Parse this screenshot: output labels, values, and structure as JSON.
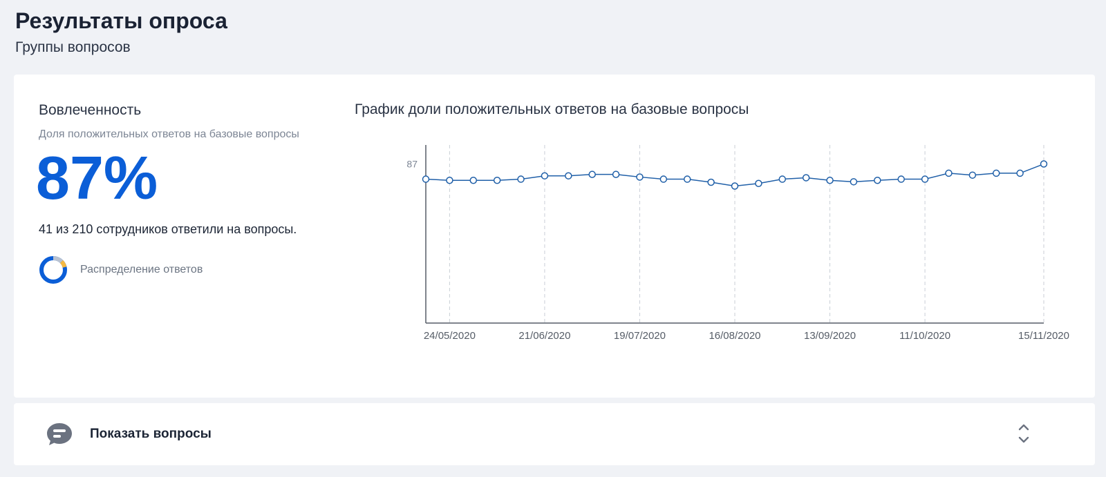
{
  "header": {
    "title": "Результаты опроса",
    "subtitle": "Группы вопросов"
  },
  "engagement": {
    "title": "Вовлеченность",
    "caption": "Доля положительных ответов на базовые вопросы",
    "value": "87%",
    "count_text": "41 из 210 сотрудников ответили на вопросы.",
    "distribution_label": "Распределение ответов",
    "donut_colors": [
      "#0b5ed7",
      "#f5b942",
      "#b9c2d0"
    ]
  },
  "chart": {
    "title": "График доли положительных ответов на базовые вопросы"
  },
  "chart_data": {
    "type": "line",
    "x": [
      "17/05/2020",
      "24/05/2020",
      "31/05/2020",
      "07/06/2020",
      "14/06/2020",
      "21/06/2020",
      "28/06/2020",
      "05/07/2020",
      "12/07/2020",
      "19/07/2020",
      "26/07/2020",
      "02/08/2020",
      "09/08/2020",
      "16/08/2020",
      "23/08/2020",
      "30/08/2020",
      "06/09/2020",
      "13/09/2020",
      "20/09/2020",
      "27/09/2020",
      "04/10/2020",
      "11/10/2020",
      "18/10/2020",
      "25/10/2020",
      "01/11/2020",
      "08/11/2020",
      "15/11/2020"
    ],
    "series": [
      {
        "values": [
          80.6,
          80.1,
          80.1,
          80.1,
          80.6,
          82.0,
          82.0,
          82.6,
          82.6,
          81.5,
          80.6,
          80.6,
          79.3,
          77.7,
          78.8,
          80.6,
          81.2,
          80.1,
          79.5,
          80.1,
          80.6,
          80.6,
          83.1,
          82.3,
          83.1,
          83.1,
          87.0
        ]
      }
    ],
    "xticks": [
      "24/05/2020",
      "21/06/2020",
      "19/07/2020",
      "16/08/2020",
      "13/09/2020",
      "11/10/2020",
      "15/11/2020"
    ],
    "yticks": [
      87
    ],
    "ylim": [
      20,
      95
    ],
    "color": "#1f5fa8",
    "grid": "vertical-dashed"
  },
  "footer": {
    "label": "Показать вопросы"
  }
}
